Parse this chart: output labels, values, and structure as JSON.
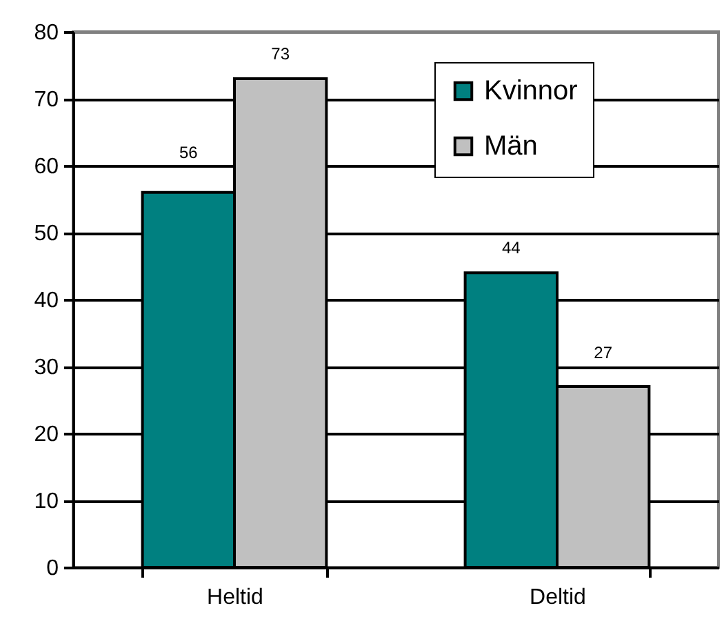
{
  "chart_data": {
    "type": "bar",
    "categories": [
      "Heltid",
      "Deltid"
    ],
    "series": [
      {
        "name": "Kvinnor",
        "color": "#008080",
        "values": [
          56,
          44
        ]
      },
      {
        "name": "Män",
        "color": "#c0c0c0",
        "values": [
          73,
          27
        ]
      }
    ],
    "ylim": [
      0,
      80
    ],
    "yticks": [
      0,
      10,
      20,
      30,
      40,
      50,
      60,
      70,
      80
    ],
    "grid": "y",
    "legend": "top right",
    "data_labels": true
  }
}
